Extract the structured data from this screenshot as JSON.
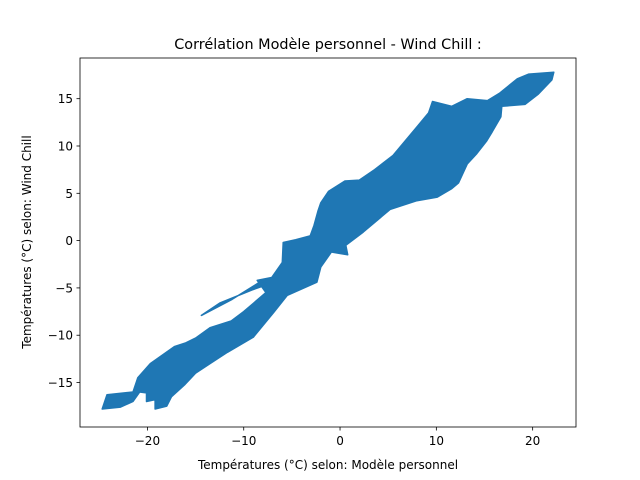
{
  "chart_data": {
    "type": "line",
    "title": "Corrélation Modèle personnel - Wind Chill :",
    "xlabel": "Températures (°C) selon: Modèle personnel",
    "ylabel": "Températures (°C) selon: Wind Chill",
    "xlim": [
      -27,
      24.5
    ],
    "ylim": [
      -19.7,
      19.3
    ],
    "xticks": [
      -20,
      -10,
      0,
      10,
      20
    ],
    "yticks": [
      -15,
      -10,
      -5,
      0,
      5,
      10,
      15
    ],
    "xtick_labels": [
      "−20",
      "−10",
      "0",
      "10",
      "20"
    ],
    "ytick_labels": [
      "−15",
      "−10",
      "−5",
      "0",
      "5",
      "10",
      "15"
    ],
    "grid": false,
    "series": [
      {
        "color": "#1f77b4",
        "outline": [
          [
            -24.7,
            -17.8
          ],
          [
            -24.2,
            -16.3
          ],
          [
            -21.5,
            -16.0
          ],
          [
            -21.0,
            -14.5
          ],
          [
            -19.7,
            -13.0
          ],
          [
            -17.2,
            -11.2
          ],
          [
            -16.0,
            -10.8
          ],
          [
            -15.0,
            -10.3
          ],
          [
            -13.5,
            -9.2
          ],
          [
            -11.3,
            -8.5
          ],
          [
            -10.0,
            -7.5
          ],
          [
            -7.7,
            -5.5
          ],
          [
            -8.6,
            -4.2
          ],
          [
            -7.1,
            -3.9
          ],
          [
            -6.0,
            -2.3
          ],
          [
            -5.9,
            -0.2
          ],
          [
            -4.6,
            0.1
          ],
          [
            -3.1,
            0.5
          ],
          [
            -2.7,
            1.6
          ],
          [
            -2.3,
            3.1
          ],
          [
            -2.0,
            4.0
          ],
          [
            -1.2,
            5.2
          ],
          [
            0.5,
            6.3
          ],
          [
            2.0,
            6.4
          ],
          [
            3.6,
            7.5
          ],
          [
            5.5,
            9.0
          ],
          [
            7.8,
            11.8
          ],
          [
            9.2,
            13.5
          ],
          [
            9.6,
            14.7
          ],
          [
            11.6,
            14.2
          ],
          [
            13.2,
            15.0
          ],
          [
            15.3,
            14.8
          ],
          [
            16.6,
            15.6
          ],
          [
            18.4,
            17.1
          ],
          [
            19.6,
            17.6
          ],
          [
            22.2,
            17.8
          ],
          [
            22.0,
            17.0
          ],
          [
            20.6,
            15.5
          ],
          [
            19.2,
            14.4
          ],
          [
            16.8,
            14.2
          ],
          [
            16.7,
            13.1
          ],
          [
            15.8,
            11.5
          ],
          [
            15.2,
            10.5
          ],
          [
            14.2,
            9.2
          ],
          [
            13.2,
            8.1
          ],
          [
            12.3,
            6.1
          ],
          [
            11.6,
            5.5
          ],
          [
            10.1,
            4.6
          ],
          [
            7.9,
            4.2
          ],
          [
            5.2,
            3.3
          ],
          [
            2.4,
            0.9
          ],
          [
            0.6,
            -0.5
          ],
          [
            0.8,
            -1.5
          ],
          [
            -0.9,
            -1.2
          ],
          [
            -2.0,
            -2.8
          ],
          [
            -2.4,
            -4.4
          ],
          [
            -5.5,
            -5.8
          ],
          [
            -6.9,
            -7.6
          ],
          [
            -9.0,
            -10.2
          ],
          [
            -11.7,
            -11.8
          ],
          [
            -13.5,
            -13.0
          ],
          [
            -15.0,
            -14.0
          ],
          [
            -16.1,
            -15.2
          ],
          [
            -17.5,
            -16.5
          ],
          [
            -18.0,
            -17.5
          ],
          [
            -19.2,
            -17.8
          ],
          [
            -19.2,
            -16.8
          ],
          [
            -20.1,
            -17.0
          ],
          [
            -20.1,
            -16.1
          ],
          [
            -20.8,
            -16.0
          ],
          [
            -21.5,
            -17.0
          ],
          [
            -22.8,
            -17.6
          ]
        ]
      },
      {
        "color": "#1f77b4",
        "outline": [
          [
            -14.4,
            -7.9
          ],
          [
            -11.2,
            -6.2
          ],
          [
            -8.2,
            -4.3
          ],
          [
            -7.4,
            -4.6
          ],
          [
            -9.1,
            -5.2
          ],
          [
            -12.5,
            -6.6
          ]
        ]
      }
    ]
  }
}
